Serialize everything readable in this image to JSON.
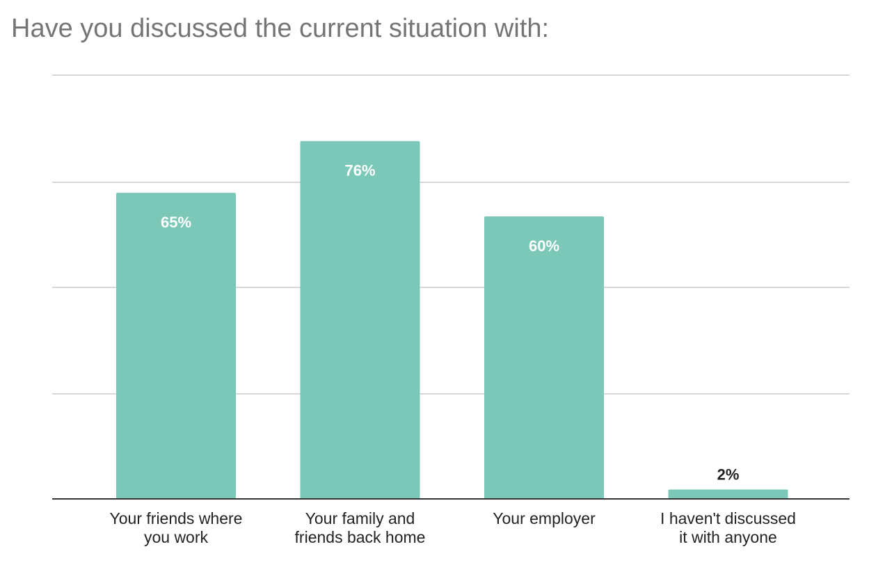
{
  "chart_data": {
    "type": "bar",
    "title": "Have you discussed the current situation with:",
    "categories": [
      [
        "Your friends where",
        "you work"
      ],
      [
        "Your family and",
        "friends back home"
      ],
      [
        "Your employer"
      ],
      [
        "I haven't discussed",
        "it with anyone"
      ]
    ],
    "values": [
      65,
      76,
      60,
      2
    ],
    "data_labels": [
      "65%",
      "76%",
      "60%",
      "2%"
    ],
    "xlabel": "",
    "ylabel": "",
    "ylim": [
      0,
      90
    ],
    "grid": true,
    "legend": "none",
    "bar_color": "#7bc8b8"
  }
}
